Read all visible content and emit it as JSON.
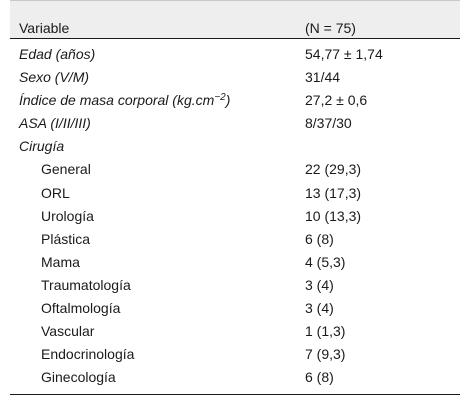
{
  "header": {
    "variable": "Variable",
    "value": "(N = 75)"
  },
  "rows": [
    {
      "label": "Edad (años)",
      "value": "54,77 ± 1,74"
    },
    {
      "label": "Sexo (V/M)",
      "value": "31/44"
    },
    {
      "label_pre": "Índice de masa corporal (kg.cm",
      "label_sup": "−2",
      "label_post": ")",
      "value": "27,2 ± 0,6"
    },
    {
      "label": "ASA (I/II/III)",
      "value": "8/37/30"
    },
    {
      "label": "Cirugía",
      "value": ""
    },
    {
      "label": "General",
      "value": "22 (29,3)"
    },
    {
      "label": "ORL",
      "value": "13 (17,3)"
    },
    {
      "label": "Urología",
      "value": "10 (13,3)"
    },
    {
      "label": "Plástica",
      "value": "6 (8)"
    },
    {
      "label": "Mama",
      "value": "4 (5,3)"
    },
    {
      "label": "Traumatología",
      "value": "3 (4)"
    },
    {
      "label": "Oftalmología",
      "value": "3 (4)"
    },
    {
      "label": "Vascular",
      "value": "1 (1,3)"
    },
    {
      "label": "Endocrinología",
      "value": "7 (9,3)"
    },
    {
      "label": "Ginecología",
      "value": "6 (8)"
    }
  ]
}
